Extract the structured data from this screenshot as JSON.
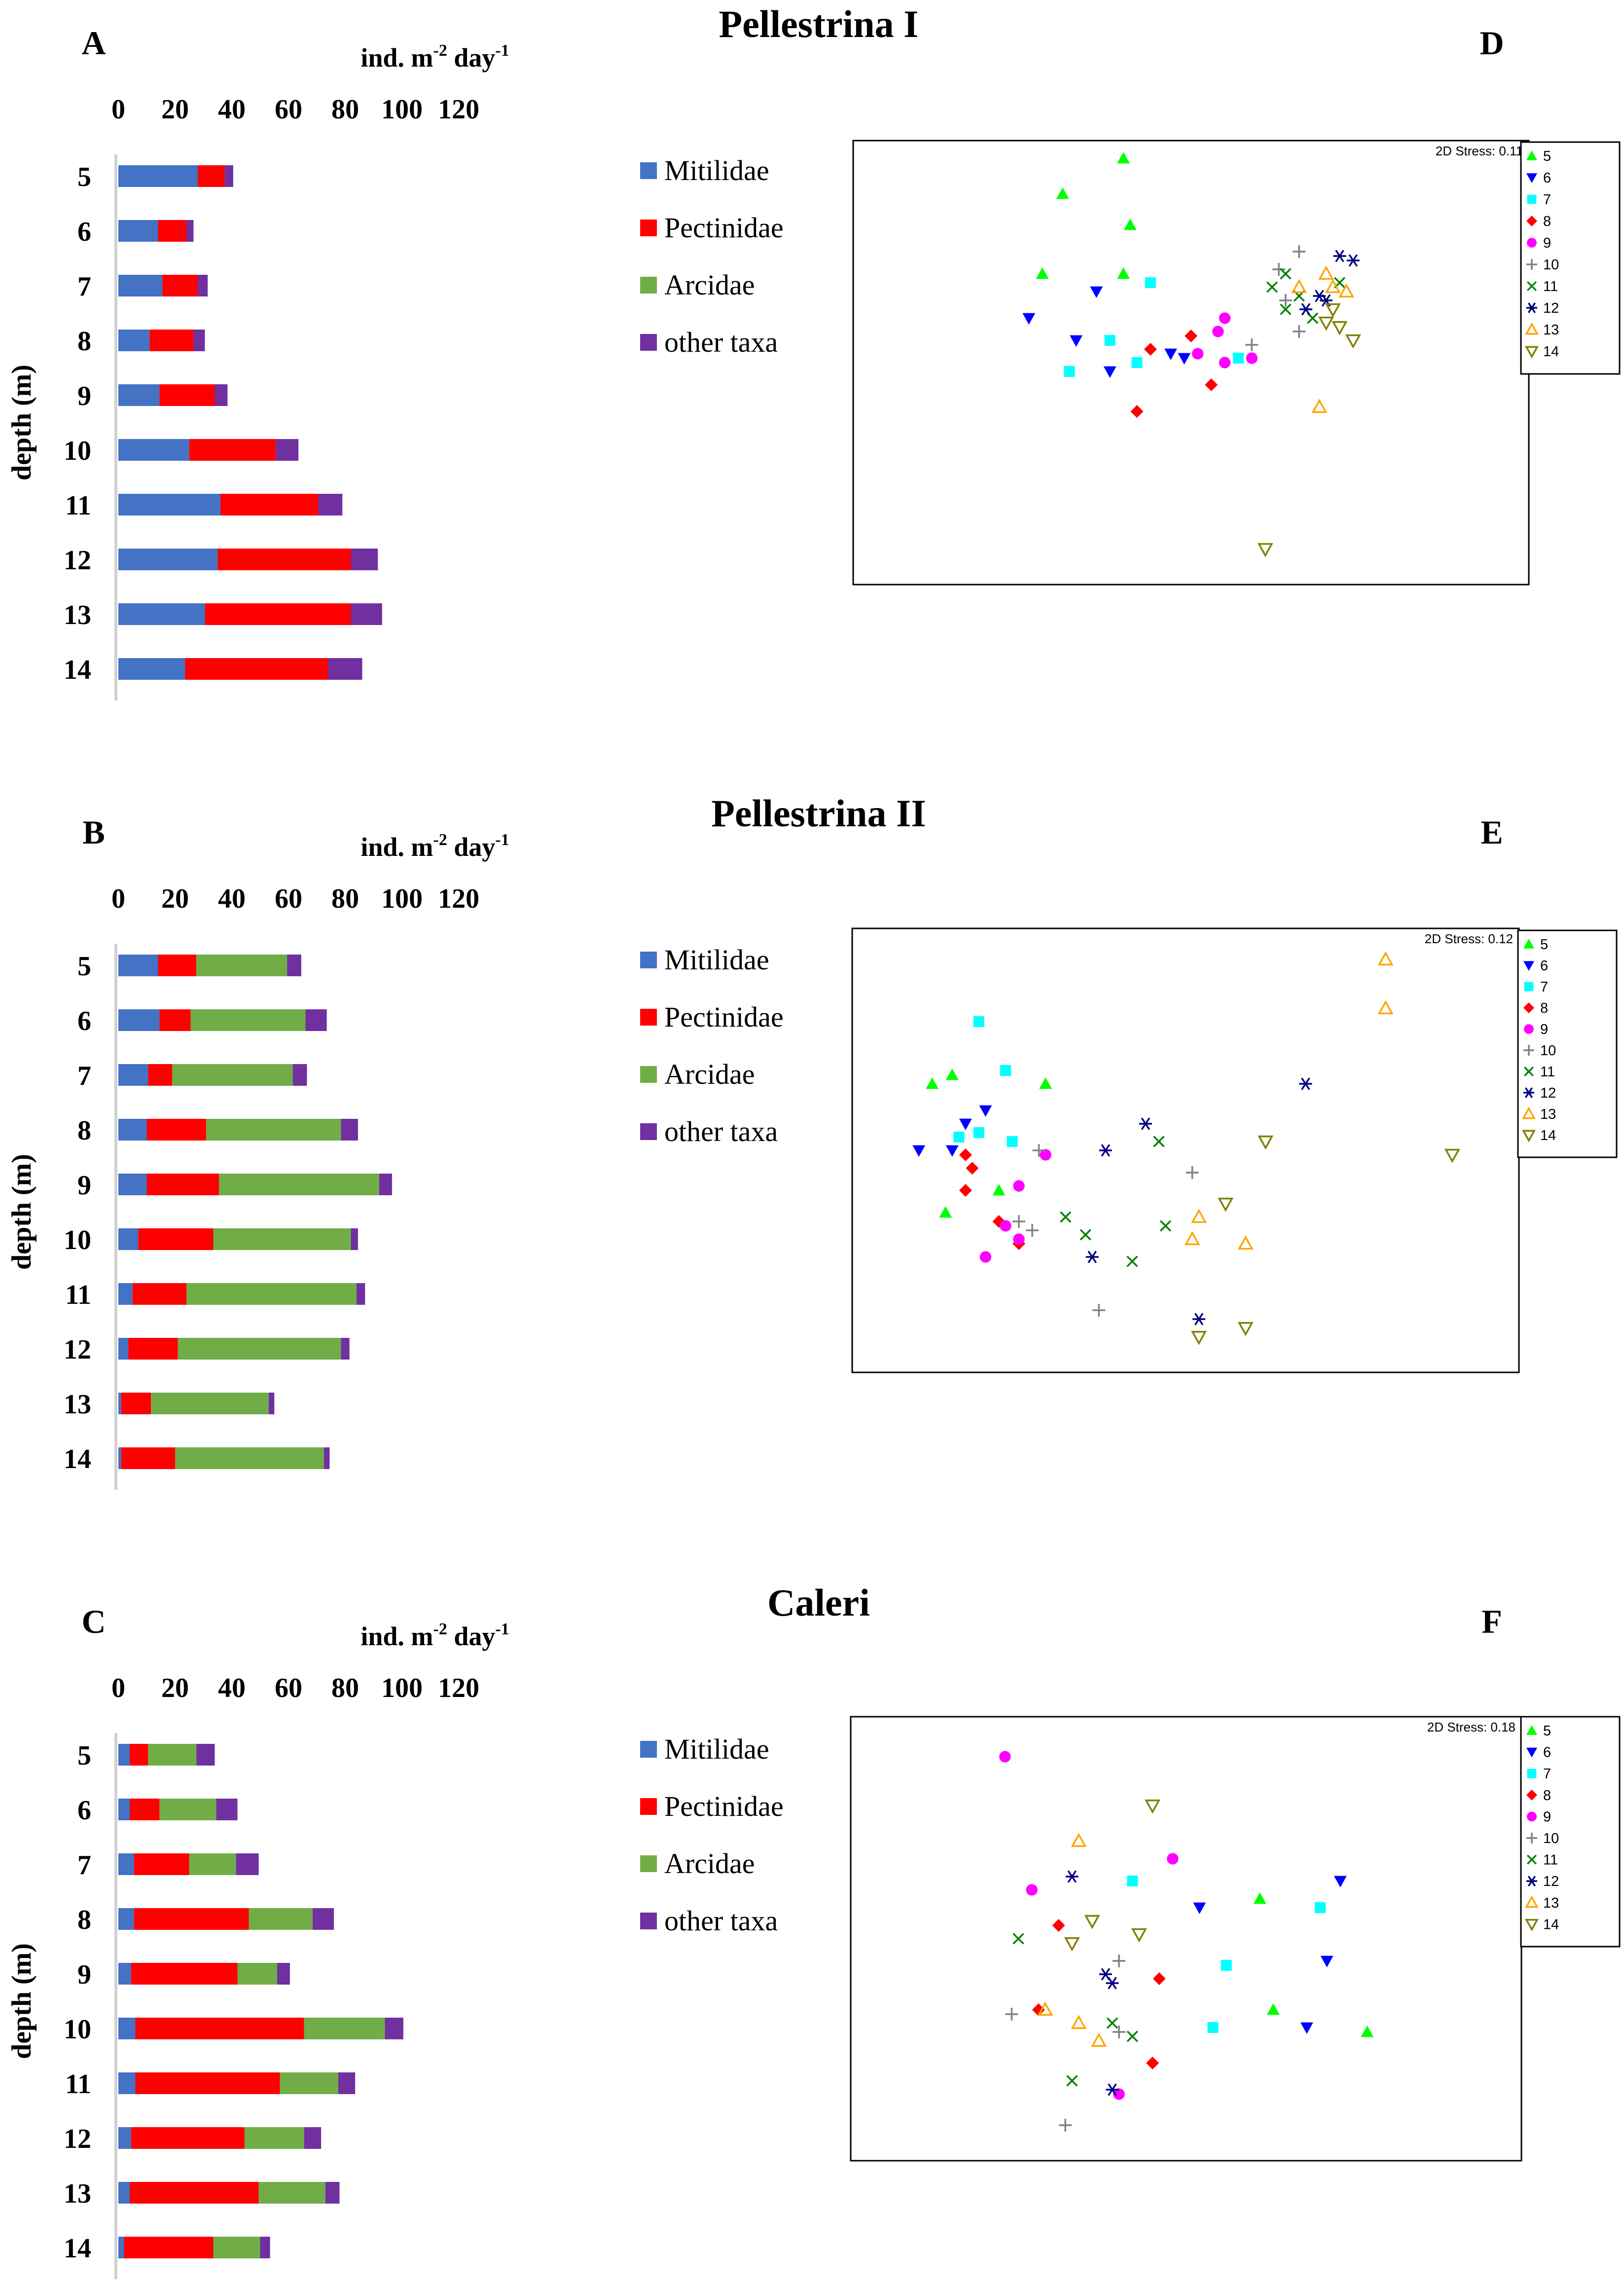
{
  "x_unit_label": {
    "main": "ind. m",
    "sup1": "-2",
    "mid": " day",
    "sup2": "-1"
  },
  "y_axis_label": "depth (m)",
  "x_ticks": [
    "0",
    "20",
    "40",
    "60",
    "80",
    "100",
    "120"
  ],
  "legend_categories": [
    "Mitilidae",
    "Pectinidae",
    "Arcidae",
    "other taxa"
  ],
  "mds_legend": [
    "5",
    "6",
    "7",
    "8",
    "9",
    "10",
    "11",
    "12",
    "13",
    "14"
  ],
  "colors": {
    "Mitilidae": "#4472C4",
    "Pectinidae": "#FF0000",
    "Arcidae": "#70AD47",
    "other taxa": "#7030A0",
    "mds": [
      "#00FF00",
      "#0000FF",
      "#00FFFF",
      "#FF0000",
      "#FF00FF",
      "#808080",
      "#008000",
      "#000080",
      "#FFA500",
      "#808000"
    ]
  },
  "chart_data": [
    {
      "type": "bar",
      "orientation": "horizontal-stacked",
      "panel": "A",
      "title": "Pellestrina I",
      "xlabel": "ind. m-2 day-1",
      "ylabel": "depth (m)",
      "xlim": [
        0,
        120
      ],
      "categories": [
        "5",
        "6",
        "7",
        "8",
        "9",
        "10",
        "11",
        "12",
        "13",
        "14"
      ],
      "series": [
        {
          "name": "Mitilidae",
          "values": [
            28,
            14,
            15.5,
            11,
            14.5,
            25,
            36,
            35,
            30.5,
            23.5
          ]
        },
        {
          "name": "Pectinidae",
          "values": [
            9.5,
            10,
            12.5,
            15.5,
            19.5,
            30.5,
            34.5,
            47,
            51.5,
            50.5
          ]
        },
        {
          "name": "Arcidae",
          "values": [
            0,
            0,
            0,
            0,
            0,
            0,
            0,
            0,
            0,
            0
          ]
        },
        {
          "name": "other taxa",
          "values": [
            3,
            2.5,
            3.5,
            4,
            4.5,
            8,
            8.5,
            9.5,
            11,
            12
          ]
        }
      ]
    },
    {
      "type": "scatter",
      "subtype": "nMDS",
      "panel": "D",
      "stress": "2D Stress: 0.11",
      "groups": [
        {
          "name": "5",
          "marker": "triangle-up",
          "points": [
            [
              0.4,
              0.04
            ],
            [
              0.31,
              0.12
            ],
            [
              0.41,
              0.19
            ],
            [
              0.28,
              0.3
            ],
            [
              0.4,
              0.3
            ]
          ]
        },
        {
          "name": "6",
          "marker": "triangle-down",
          "points": [
            [
              0.26,
              0.4
            ],
            [
              0.36,
              0.34
            ],
            [
              0.33,
              0.45
            ],
            [
              0.38,
              0.52
            ],
            [
              0.47,
              0.48
            ],
            [
              0.49,
              0.49
            ]
          ]
        },
        {
          "name": "7",
          "marker": "square",
          "points": [
            [
              0.44,
              0.32
            ],
            [
              0.38,
              0.45
            ],
            [
              0.32,
              0.52
            ],
            [
              0.42,
              0.5
            ],
            [
              0.57,
              0.49
            ]
          ]
        },
        {
          "name": "8",
          "marker": "diamond",
          "points": [
            [
              0.5,
              0.44
            ],
            [
              0.44,
              0.47
            ],
            [
              0.42,
              0.61
            ],
            [
              0.53,
              0.55
            ]
          ]
        },
        {
          "name": "9",
          "marker": "circle",
          "points": [
            [
              0.55,
              0.4
            ],
            [
              0.54,
              0.43
            ],
            [
              0.51,
              0.48
            ],
            [
              0.55,
              0.5
            ],
            [
              0.59,
              0.49
            ]
          ]
        },
        {
          "name": "10",
          "marker": "plus",
          "points": [
            [
              0.66,
              0.25
            ],
            [
              0.63,
              0.29
            ],
            [
              0.64,
              0.36
            ],
            [
              0.66,
              0.43
            ],
            [
              0.59,
              0.46
            ]
          ]
        },
        {
          "name": "11",
          "marker": "cross",
          "points": [
            [
              0.64,
              0.3
            ],
            [
              0.62,
              0.33
            ],
            [
              0.64,
              0.38
            ],
            [
              0.66,
              0.35
            ],
            [
              0.68,
              0.4
            ],
            [
              0.72,
              0.32
            ]
          ]
        },
        {
          "name": "12",
          "marker": "asterisk",
          "points": [
            [
              0.72,
              0.26
            ],
            [
              0.74,
              0.27
            ],
            [
              0.69,
              0.35
            ],
            [
              0.7,
              0.36
            ],
            [
              0.67,
              0.38
            ]
          ]
        },
        {
          "name": "13",
          "marker": "triangle-up-open",
          "points": [
            [
              0.7,
              0.3
            ],
            [
              0.71,
              0.33
            ],
            [
              0.73,
              0.34
            ],
            [
              0.66,
              0.33
            ],
            [
              0.69,
              0.6
            ]
          ]
        },
        {
          "name": "14",
          "marker": "triangle-down-open",
          "points": [
            [
              0.71,
              0.38
            ],
            [
              0.7,
              0.41
            ],
            [
              0.72,
              0.42
            ],
            [
              0.74,
              0.45
            ],
            [
              0.61,
              0.92
            ]
          ]
        }
      ]
    },
    {
      "type": "bar",
      "orientation": "horizontal-stacked",
      "panel": "B",
      "title": "Pellestrina II",
      "xlabel": "ind. m-2 day-1",
      "ylabel": "depth (m)",
      "xlim": [
        0,
        120
      ],
      "categories": [
        "5",
        "6",
        "7",
        "8",
        "9",
        "10",
        "11",
        "12",
        "13",
        "14"
      ],
      "series": [
        {
          "name": "Mitilidae",
          "values": [
            14,
            14.5,
            10.5,
            10,
            10,
            7,
            5,
            3.5,
            1,
            1
          ]
        },
        {
          "name": "Pectinidae",
          "values": [
            13.5,
            11,
            8.5,
            21,
            25.5,
            26.5,
            19,
            17.5,
            10.5,
            19
          ]
        },
        {
          "name": "Arcidae",
          "values": [
            32,
            40.5,
            42.5,
            47.5,
            56.5,
            48.5,
            60,
            57.5,
            41.5,
            52.5
          ]
        },
        {
          "name": "other taxa",
          "values": [
            5,
            7.5,
            5,
            6,
            4.5,
            2.5,
            3,
            3,
            2,
            2
          ]
        }
      ]
    },
    {
      "type": "scatter",
      "subtype": "nMDS",
      "panel": "E",
      "stress": "2D Stress: 0.12",
      "groups": [
        {
          "name": "5",
          "marker": "triangle-up",
          "points": [
            [
              0.12,
              0.35
            ],
            [
              0.15,
              0.33
            ],
            [
              0.29,
              0.35
            ],
            [
              0.14,
              0.64
            ],
            [
              0.22,
              0.59
            ]
          ]
        },
        {
          "name": "6",
          "marker": "triangle-down",
          "points": [
            [
              0.1,
              0.5
            ],
            [
              0.15,
              0.5
            ],
            [
              0.17,
              0.44
            ],
            [
              0.2,
              0.41
            ]
          ]
        },
        {
          "name": "7",
          "marker": "square",
          "points": [
            [
              0.19,
              0.21
            ],
            [
              0.23,
              0.32
            ],
            [
              0.16,
              0.47
            ],
            [
              0.19,
              0.46
            ],
            [
              0.24,
              0.48
            ]
          ]
        },
        {
          "name": "8",
          "marker": "diamond",
          "points": [
            [
              0.17,
              0.51
            ],
            [
              0.18,
              0.54
            ],
            [
              0.17,
              0.59
            ],
            [
              0.22,
              0.66
            ],
            [
              0.25,
              0.71
            ]
          ]
        },
        {
          "name": "9",
          "marker": "circle",
          "points": [
            [
              0.29,
              0.51
            ],
            [
              0.25,
              0.58
            ],
            [
              0.23,
              0.67
            ],
            [
              0.25,
              0.7
            ],
            [
              0.2,
              0.74
            ]
          ]
        },
        {
          "name": "10",
          "marker": "plus",
          "points": [
            [
              0.28,
              0.5
            ],
            [
              0.25,
              0.66
            ],
            [
              0.27,
              0.68
            ],
            [
              0.51,
              0.55
            ],
            [
              0.37,
              0.86
            ]
          ]
        },
        {
          "name": "11",
          "marker": "cross",
          "points": [
            [
              0.46,
              0.48
            ],
            [
              0.32,
              0.65
            ],
            [
              0.35,
              0.69
            ],
            [
              0.47,
              0.67
            ],
            [
              0.42,
              0.75
            ]
          ]
        },
        {
          "name": "12",
          "marker": "asterisk",
          "points": [
            [
              0.38,
              0.5
            ],
            [
              0.44,
              0.44
            ],
            [
              0.68,
              0.35
            ],
            [
              0.36,
              0.74
            ],
            [
              0.52,
              0.88
            ]
          ]
        },
        {
          "name": "13",
          "marker": "triangle-up-open",
          "points": [
            [
              0.8,
              0.07
            ],
            [
              0.8,
              0.18
            ],
            [
              0.52,
              0.65
            ],
            [
              0.51,
              0.7
            ],
            [
              0.59,
              0.71
            ]
          ]
        },
        {
          "name": "14",
          "marker": "triangle-down-open",
          "points": [
            [
              0.62,
              0.48
            ],
            [
              0.9,
              0.51
            ],
            [
              0.56,
              0.62
            ],
            [
              0.59,
              0.9
            ],
            [
              0.52,
              0.92
            ]
          ]
        }
      ]
    },
    {
      "type": "bar",
      "orientation": "horizontal-stacked",
      "panel": "C",
      "title": "Caleri",
      "xlabel": "ind. m-2 day-1",
      "ylabel": "depth (m)",
      "xlim": [
        0,
        120
      ],
      "categories": [
        "5",
        "6",
        "7",
        "8",
        "9",
        "10",
        "11",
        "12",
        "13",
        "14"
      ],
      "series": [
        {
          "name": "Mitilidae",
          "values": [
            4,
            4,
            5.5,
            5.5,
            4.5,
            6,
            6,
            4.5,
            4,
            2
          ]
        },
        {
          "name": "Pectinidae",
          "values": [
            6.5,
            10.5,
            19.5,
            40.5,
            37.5,
            59.5,
            51,
            40,
            45.5,
            31.5
          ]
        },
        {
          "name": "Arcidae",
          "values": [
            17,
            20,
            16.5,
            22.5,
            14,
            28.5,
            20.5,
            21,
            23.5,
            16.5
          ]
        },
        {
          "name": "other taxa",
          "values": [
            6.5,
            7.5,
            8,
            7.5,
            4.5,
            6.5,
            6,
            6,
            5,
            3.5
          ]
        }
      ]
    },
    {
      "type": "scatter",
      "subtype": "nMDS",
      "panel": "F",
      "stress": "2D Stress: 0.18",
      "groups": [
        {
          "name": "5",
          "marker": "triangle-up",
          "points": [
            [
              0.61,
              0.41
            ],
            [
              0.63,
              0.66
            ],
            [
              0.77,
              0.71
            ]
          ]
        },
        {
          "name": "6",
          "marker": "triangle-down",
          "points": [
            [
              0.52,
              0.43
            ],
            [
              0.73,
              0.37
            ],
            [
              0.71,
              0.55
            ],
            [
              0.68,
              0.7
            ]
          ]
        },
        {
          "name": "7",
          "marker": "square",
          "points": [
            [
              0.42,
              0.37
            ],
            [
              0.7,
              0.43
            ],
            [
              0.56,
              0.56
            ],
            [
              0.54,
              0.7
            ]
          ]
        },
        {
          "name": "8",
          "marker": "diamond",
          "points": [
            [
              0.31,
              0.47
            ],
            [
              0.46,
              0.59
            ],
            [
              0.28,
              0.66
            ],
            [
              0.45,
              0.78
            ]
          ]
        },
        {
          "name": "9",
          "marker": "circle",
          "points": [
            [
              0.23,
              0.09
            ],
            [
              0.48,
              0.32
            ],
            [
              0.27,
              0.39
            ],
            [
              0.4,
              0.85
            ]
          ]
        },
        {
          "name": "10",
          "marker": "plus",
          "points": [
            [
              0.4,
              0.55
            ],
            [
              0.24,
              0.67
            ],
            [
              0.4,
              0.71
            ],
            [
              0.32,
              0.92
            ]
          ]
        },
        {
          "name": "11",
          "marker": "cross",
          "points": [
            [
              0.25,
              0.5
            ],
            [
              0.39,
              0.69
            ],
            [
              0.42,
              0.72
            ],
            [
              0.33,
              0.82
            ]
          ]
        },
        {
          "name": "12",
          "marker": "asterisk",
          "points": [
            [
              0.33,
              0.36
            ],
            [
              0.38,
              0.58
            ],
            [
              0.39,
              0.6
            ],
            [
              0.39,
              0.84
            ]
          ]
        },
        {
          "name": "13",
          "marker": "triangle-up-open",
          "points": [
            [
              0.34,
              0.28
            ],
            [
              0.29,
              0.66
            ],
            [
              0.34,
              0.69
            ],
            [
              0.37,
              0.73
            ]
          ]
        },
        {
          "name": "14",
          "marker": "triangle-down-open",
          "points": [
            [
              0.45,
              0.2
            ],
            [
              0.36,
              0.46
            ],
            [
              0.43,
              0.49
            ],
            [
              0.33,
              0.51
            ]
          ]
        }
      ]
    }
  ]
}
